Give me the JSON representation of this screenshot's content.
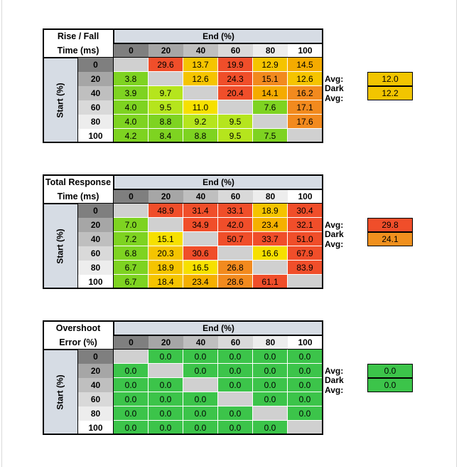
{
  "chart_data": [
    {
      "type": "heatmap",
      "title_line1": "Rise / Fall",
      "title_line2": "Time (ms)",
      "col_header": "End (%)",
      "row_header": "Start (%)",
      "columns": [
        "0",
        "20",
        "40",
        "60",
        "80",
        "100"
      ],
      "rows": [
        "0",
        "20",
        "40",
        "60",
        "80",
        "100"
      ],
      "values": [
        [
          null,
          "29.6",
          "13.7",
          "19.9",
          "12.9",
          "14.5"
        ],
        [
          "3.8",
          null,
          "12.6",
          "24.3",
          "15.1",
          "12.6"
        ],
        [
          "3.9",
          "9.7",
          null,
          "20.4",
          "14.1",
          "16.2"
        ],
        [
          "4.0",
          "9.5",
          "11.0",
          null,
          "7.6",
          "17.1"
        ],
        [
          "4.0",
          "8.8",
          "9.2",
          "9.5",
          null,
          "17.6"
        ],
        [
          "4.2",
          "8.4",
          "8.8",
          "9.5",
          "7.5",
          null
        ]
      ],
      "avg_label": "Avg:",
      "avg_value": "12.0",
      "avg_color": "#f2c500",
      "dark_avg_label": "Dark Avg:",
      "dark_avg_value": "12.2",
      "dark_avg_color": "#f2c500"
    },
    {
      "type": "heatmap",
      "title_line1": "Total Response",
      "title_line2": "Time (ms)",
      "col_header": "End (%)",
      "row_header": "Start (%)",
      "columns": [
        "0",
        "20",
        "40",
        "60",
        "80",
        "100"
      ],
      "rows": [
        "0",
        "20",
        "40",
        "60",
        "80",
        "100"
      ],
      "values": [
        [
          null,
          "48.9",
          "31.4",
          "33.1",
          "18.9",
          "30.4"
        ],
        [
          "7.0",
          null,
          "34.9",
          "42.0",
          "23.4",
          "32.1"
        ],
        [
          "7.2",
          "15.1",
          null,
          "50.7",
          "33.7",
          "51.0"
        ],
        [
          "6.8",
          "20.3",
          "30.6",
          null,
          "16.6",
          "67.9"
        ],
        [
          "6.7",
          "18.9",
          "16.5",
          "26.8",
          null,
          "83.9"
        ],
        [
          "6.7",
          "18.4",
          "23.4",
          "28.6",
          "61.1",
          null
        ]
      ],
      "avg_label": "Avg:",
      "avg_value": "29.8",
      "avg_color": "#f04e2a",
      "dark_avg_label": "Dark Avg:",
      "dark_avg_value": "24.1",
      "dark_avg_color": "#f0901e"
    },
    {
      "type": "heatmap",
      "title_line1": "Overshoot",
      "title_line2": "Error (%)",
      "col_header": "End (%)",
      "row_header": "Start (%)",
      "columns": [
        "0",
        "20",
        "40",
        "60",
        "80",
        "100"
      ],
      "rows": [
        "0",
        "20",
        "40",
        "60",
        "80",
        "100"
      ],
      "values": [
        [
          null,
          "0.0",
          "0.0",
          "0.0",
          "0.0",
          "0.0"
        ],
        [
          "0.0",
          null,
          "0.0",
          "0.0",
          "0.0",
          "0.0"
        ],
        [
          "0.0",
          "0.0",
          null,
          "0.0",
          "0.0",
          "0.0"
        ],
        [
          "0.0",
          "0.0",
          "0.0",
          null,
          "0.0",
          "0.0"
        ],
        [
          "0.0",
          "0.0",
          "0.0",
          "0.0",
          null,
          "0.0"
        ],
        [
          "0.0",
          "0.0",
          "0.0",
          "0.0",
          "0.0",
          null
        ]
      ],
      "avg_label": "Avg:",
      "avg_value": "0.0",
      "avg_color": "#3cc44a",
      "dark_avg_label": "Dark Avg:",
      "dark_avg_value": "0.0",
      "dark_avg_color": "#3cc44a"
    }
  ],
  "header_colors": [
    "#7f7f7f",
    "#a6a6a6",
    "#bfbfbf",
    "#d9d9d9",
    "#ededed",
    "#ffffff"
  ],
  "diagonal_color": "#d0d0d0"
}
